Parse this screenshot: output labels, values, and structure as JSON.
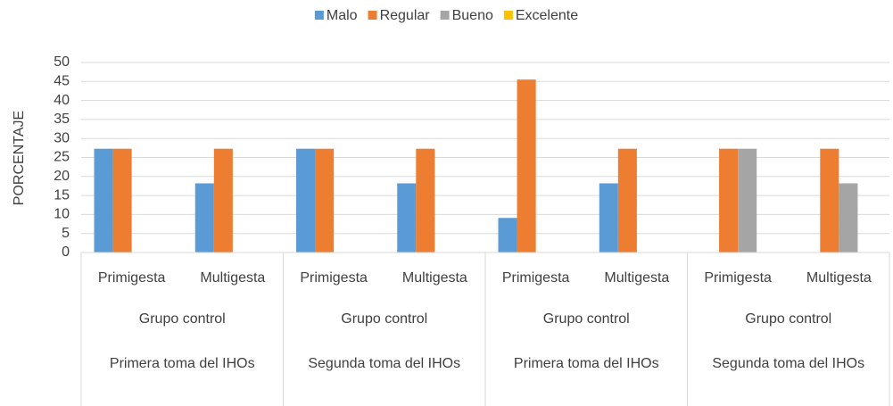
{
  "chart_data": {
    "type": "bar",
    "y_axis_label": "PORCENTAJE",
    "categories": [
      "Primigesta",
      "Multigesta",
      "Primigesta",
      "Multigesta",
      "Primigesta",
      "Multigesta",
      "Primigesta",
      "Multigesta"
    ],
    "group_labels": [
      "Grupo control",
      "Grupo control",
      "Grupo control",
      "Grupo control"
    ],
    "outer_labels": [
      "Primera toma del IHOs",
      "Segunda toma del IHOs",
      "Primera toma del IHOs",
      "Segunda toma del IHOs"
    ],
    "series": [
      {
        "name": "Malo",
        "color": "#5b9bd5",
        "values": [
          27.3,
          18.2,
          27.3,
          18.2,
          9.1,
          18.2,
          0,
          0
        ]
      },
      {
        "name": "Regular",
        "color": "#ed7d31",
        "values": [
          27.3,
          27.3,
          27.3,
          27.3,
          45.5,
          27.3,
          27.3,
          27.3
        ]
      },
      {
        "name": "Bueno",
        "color": "#a5a5a5",
        "values": [
          0,
          0,
          0,
          0,
          0,
          0,
          27.3,
          18.2
        ]
      },
      {
        "name": "Excelente",
        "color": "#ffc000",
        "values": [
          0,
          0,
          0,
          0,
          0,
          0,
          0,
          0
        ]
      }
    ],
    "ylim": [
      0,
      50
    ],
    "yticks": [
      0,
      5,
      10,
      15,
      20,
      25,
      30,
      35,
      40,
      45,
      50
    ],
    "grid": true,
    "legend": "top"
  }
}
